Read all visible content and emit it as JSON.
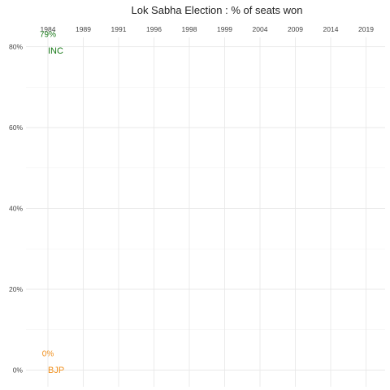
{
  "chart_data": {
    "type": "scatter",
    "title": "Lok Sabha Election : % of seats won",
    "xlabel": "",
    "ylabel": "",
    "categories": [
      "1984",
      "1989",
      "1991",
      "1996",
      "1998",
      "1999",
      "2004",
      "2009",
      "2014",
      "2019"
    ],
    "y_ticks": [
      "0%",
      "20%",
      "40%",
      "60%",
      "80%"
    ],
    "ylim": [
      0,
      85
    ],
    "x_axis_position": "top",
    "grid": true,
    "series": [
      {
        "name": "INC",
        "color": "#1a7a1a",
        "points": [
          {
            "x": "1984",
            "y": 79,
            "label": "79%"
          }
        ]
      },
      {
        "name": "BJP",
        "color": "#f0901e",
        "points": [
          {
            "x": "1984",
            "y": 0,
            "label": "0%"
          }
        ]
      }
    ]
  }
}
